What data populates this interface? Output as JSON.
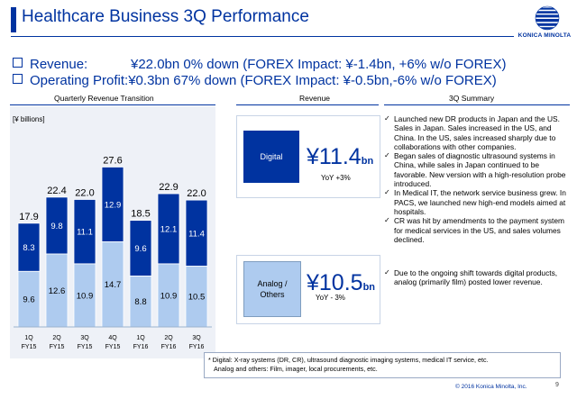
{
  "header": {
    "title": "Healthcare Business 3Q Performance",
    "logo_text": "KONICA MINOLTA"
  },
  "bullets": [
    {
      "label": "Revenue:",
      "value": "¥22.0bn  0% down (FOREX Impact: ¥-1.4bn, +6% w/o FOREX)"
    },
    {
      "label": "Operating Profit:",
      "value": "¥0.3bn 67% down  (FOREX Impact: ¥-0.5bn,-6% w/o FOREX)"
    }
  ],
  "sections": {
    "left": "Quarterly Revenue Transition",
    "mid": "Revenue",
    "right": "3Q Summary"
  },
  "chart_data": {
    "type": "bar",
    "stacked": true,
    "unit_label": "[¥ billions]",
    "categories": [
      {
        "q": "1Q",
        "fy": "FY15"
      },
      {
        "q": "2Q",
        "fy": "FY15"
      },
      {
        "q": "3Q",
        "fy": "FY15"
      },
      {
        "q": "4Q",
        "fy": "FY15"
      },
      {
        "q": "1Q",
        "fy": "FY16"
      },
      {
        "q": "2Q",
        "fy": "FY16"
      },
      {
        "q": "3Q",
        "fy": "FY16"
      }
    ],
    "series": [
      {
        "values": [
          9.6,
          12.6,
          10.9,
          14.7,
          8.8,
          10.9,
          10.5
        ],
        "color": "#aecbef"
      },
      {
        "values": [
          8.3,
          9.8,
          11.1,
          12.9,
          9.6,
          12.1,
          11.4
        ],
        "color": "#0033a0"
      }
    ],
    "totals": [
      17.9,
      22.4,
      22.0,
      27.6,
      18.5,
      22.9,
      22.0
    ],
    "ylim": [
      0,
      30
    ]
  },
  "revenue": {
    "digital": {
      "label": "Digital",
      "amount": "¥11.4",
      "unit": "bn",
      "yoy": "YoY +3%"
    },
    "analog": {
      "label_line1": "Analog /",
      "label_line2": "Others",
      "amount": "¥10.5",
      "unit": "bn",
      "yoy": "YoY  - 3%"
    }
  },
  "summary": {
    "digital": [
      "Launched new DR products in Japan and the US. Sales in Japan. Sales increased in the US, and China. In the US, sales increased sharply due to collaborations with other companies.",
      "Began sales of diagnostic ultrasound systems in China, while sales in Japan continued to be favorable. New version with a high-resolution probe introduced.",
      "In Medical IT, the network service business grew. In PACS, we launched new high-end models aimed at hospitals.",
      "CR was hit by amendments to the payment system for medical services in the US, and sales volumes declined."
    ],
    "analog": [
      "Due to the ongoing shift towards digital products, analog (primarily film) posted lower revenue."
    ]
  },
  "footnote": {
    "line1": "* Digital: X-ray systems (DR, CR), ultrasound diagnostic imaging systems, medical IT service, etc.",
    "line2": "Analog and others: Film, imager, local procurements, etc."
  },
  "footer": {
    "copyright": "© 2016 Konica Minolta, Inc.",
    "page": "9"
  }
}
